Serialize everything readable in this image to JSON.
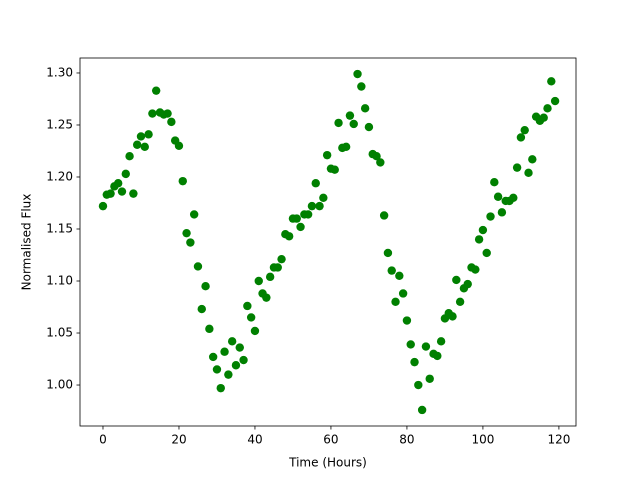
{
  "chart_data": {
    "type": "scatter",
    "x_label": "Time (Hours)",
    "y_label": "Normalised Flux",
    "color": "#008000",
    "x": [
      0,
      1,
      2,
      3,
      4,
      5,
      6,
      7,
      8,
      9,
      10,
      11,
      12,
      13,
      14,
      15,
      16,
      17,
      18,
      19,
      20,
      21,
      22,
      23,
      24,
      25,
      26,
      27,
      28,
      29,
      30,
      31,
      32,
      33,
      34,
      35,
      36,
      37,
      38,
      39,
      40,
      41,
      42,
      43,
      44,
      45,
      46,
      47,
      48,
      49,
      50,
      51,
      52,
      53,
      54,
      55,
      56,
      57,
      58,
      59,
      60,
      61,
      62,
      63,
      64,
      65,
      66,
      67,
      68,
      69,
      70,
      71,
      72,
      73,
      74,
      75,
      76,
      77,
      78,
      79,
      80,
      81,
      82,
      83,
      84,
      85,
      86,
      87,
      88,
      89,
      90,
      91,
      92,
      93,
      94,
      95,
      96,
      97,
      98,
      99,
      100,
      101,
      102,
      103,
      104,
      105,
      106,
      107,
      108,
      109,
      110,
      111,
      112,
      113,
      114,
      115,
      116,
      117,
      118,
      119
    ],
    "values": [
      1.172,
      1.183,
      1.184,
      1.191,
      1.194,
      1.186,
      1.203,
      1.22,
      1.184,
      1.231,
      1.239,
      1.229,
      1.241,
      1.261,
      1.283,
      1.262,
      1.26,
      1.261,
      1.253,
      1.235,
      1.23,
      1.196,
      1.146,
      1.137,
      1.164,
      1.114,
      1.073,
      1.095,
      1.054,
      1.027,
      1.015,
      0.997,
      1.032,
      1.01,
      1.042,
      1.019,
      1.036,
      1.024,
      1.076,
      1.065,
      1.052,
      1.1,
      1.088,
      1.084,
      1.104,
      1.113,
      1.113,
      1.121,
      1.145,
      1.143,
      1.16,
      1.16,
      1.152,
      1.164,
      1.164,
      1.172,
      1.194,
      1.172,
      1.18,
      1.221,
      1.208,
      1.207,
      1.252,
      1.228,
      1.229,
      1.259,
      1.251,
      1.299,
      1.287,
      1.266,
      1.248,
      1.222,
      1.22,
      1.214,
      1.163,
      1.127,
      1.11,
      1.08,
      1.105,
      1.088,
      1.062,
      1.039,
      1.022,
      1.0,
      0.976,
      1.037,
      1.006,
      1.03,
      1.028,
      1.042,
      1.064,
      1.069,
      1.066,
      1.101,
      1.08,
      1.093,
      1.097,
      1.113,
      1.111,
      1.14,
      1.149,
      1.127,
      1.162,
      1.195,
      1.181,
      1.166,
      1.177,
      1.177,
      1.18,
      1.209,
      1.238,
      1.245,
      1.204,
      1.217,
      1.258,
      1.254,
      1.257,
      1.266,
      1.292,
      1.273
    ],
    "xlim": [
      -6.05,
      124.5
    ],
    "ylim": [
      0.9606,
      1.3144
    ],
    "xticks": [
      0,
      20,
      40,
      60,
      80,
      100,
      120
    ],
    "yticks": [
      {
        "value": 1,
        "label": "1.00"
      },
      1.05,
      {
        "value": 1.1,
        "label": "1.10"
      },
      1.15,
      {
        "value": 1.2,
        "label": "1.20"
      },
      1.25,
      {
        "value": 1.3,
        "label": "1.30"
      }
    ]
  }
}
